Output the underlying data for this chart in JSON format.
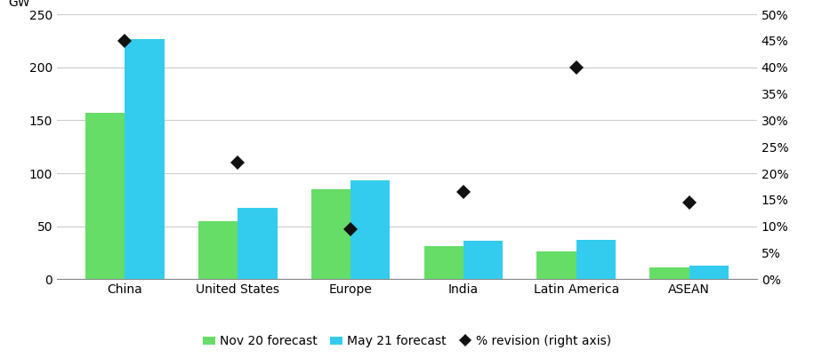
{
  "categories": [
    "China",
    "United States",
    "Europe",
    "India",
    "Latin America",
    "ASEAN"
  ],
  "nov20": [
    157,
    55,
    85,
    31,
    26,
    11
  ],
  "may21": [
    227,
    67,
    93,
    36,
    37,
    13
  ],
  "pct_revision": [
    0.45,
    0.22,
    0.095,
    0.165,
    0.4,
    0.145
  ],
  "bar_color_nov20": "#66DD66",
  "bar_color_may21": "#33CCEE",
  "dot_color": "#111111",
  "ylabel_left": "GW",
  "ylim_left": [
    0,
    250
  ],
  "ylim_right": [
    0,
    0.5
  ],
  "yticks_left": [
    0,
    50,
    100,
    150,
    200,
    250
  ],
  "yticks_right": [
    0.0,
    0.05,
    0.1,
    0.15,
    0.2,
    0.25,
    0.3,
    0.35,
    0.4,
    0.45,
    0.5
  ],
  "ytick_labels_right": [
    "0%",
    "5%",
    "10%",
    "15%",
    "20%",
    "25%",
    "30%",
    "35%",
    "40%",
    "45%",
    "50%"
  ],
  "legend_labels": [
    "Nov 20 forecast",
    "May 21 forecast",
    "% revision (right axis)"
  ],
  "background_color": "#ffffff",
  "grid_color": "#cccccc",
  "bar_width": 0.35,
  "figsize": [
    9.15,
    4.03
  ],
  "dpi": 100
}
